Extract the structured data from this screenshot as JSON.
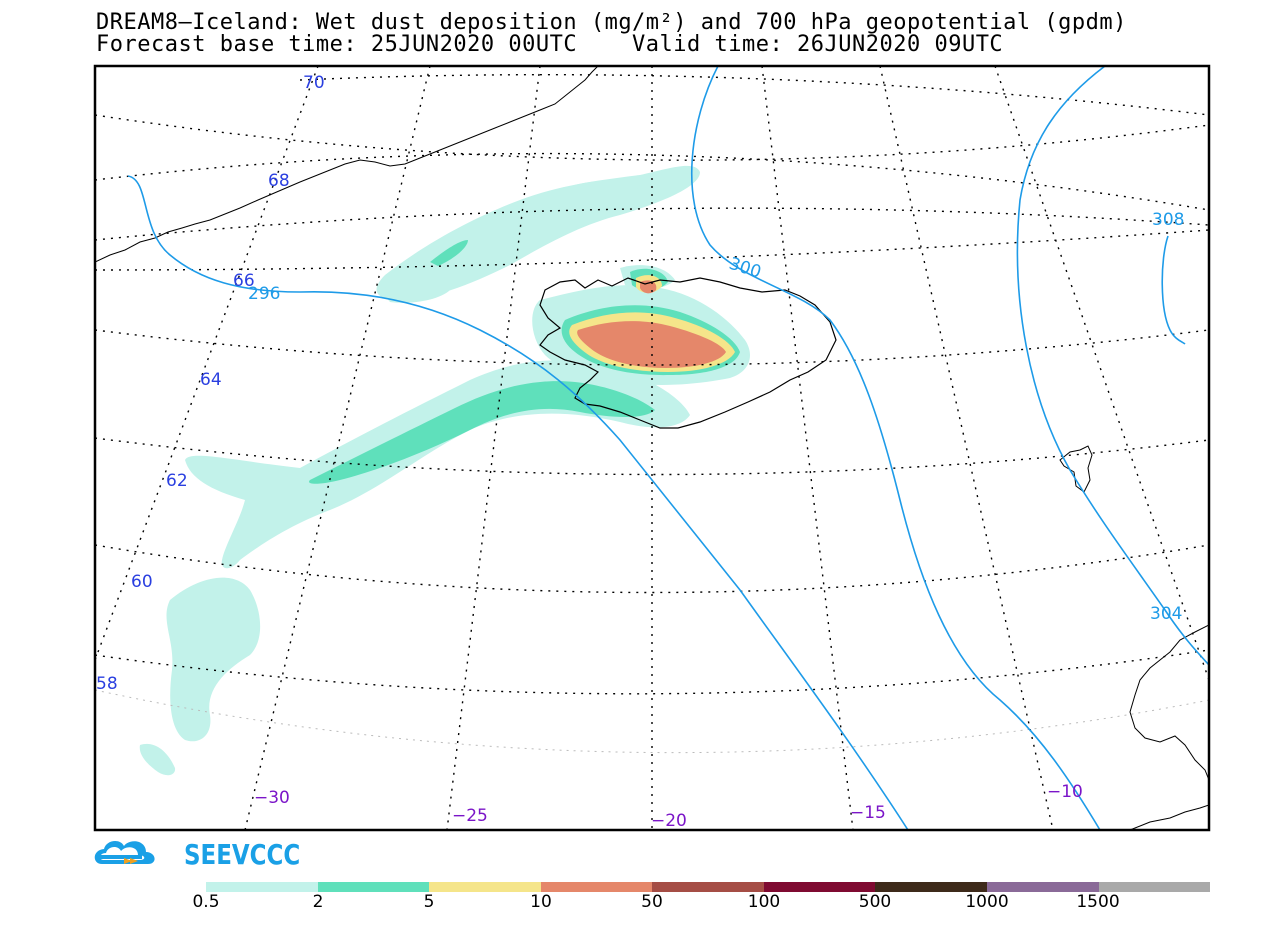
{
  "header": {
    "title_line1": "DREAM8—Iceland: Wet dust deposition (mg/m²) and 700 hPa geopotential (gpdm)",
    "title_line2": "Forecast base time: 25JUN2020 00UTC    Valid time: 26JUN2020 09UTC"
  },
  "map": {
    "region": "Iceland and North Atlantic",
    "lat_labels": [
      "70",
      "68",
      "66",
      "64",
      "62",
      "60",
      "58"
    ],
    "lon_labels": [
      "−30",
      "−25",
      "−20",
      "−15",
      "−10"
    ],
    "contour_labels": [
      "296",
      "300",
      "304",
      "308"
    ],
    "colors": {
      "contour": "#1e9be8",
      "lat_label": "#2a3fe0",
      "lon_label": "#7b15c8",
      "dust_light": "#c2f2ea",
      "dust_mid": "#5fe0bb",
      "dust_yellow": "#f5e58a",
      "dust_orange": "#e5876a"
    }
  },
  "logo": {
    "text": "SEEVCCC"
  },
  "colorbar": {
    "labels": [
      "0.5",
      "2",
      "5",
      "10",
      "50",
      "100",
      "500",
      "1000",
      "1500"
    ],
    "colors": [
      "#c2f2ea",
      "#5fe0bb",
      "#f5e58a",
      "#e5876a",
      "#a54d45",
      "#7f0a31",
      "#3e2a1a",
      "#8a6a98",
      "#a9a9a9"
    ]
  }
}
